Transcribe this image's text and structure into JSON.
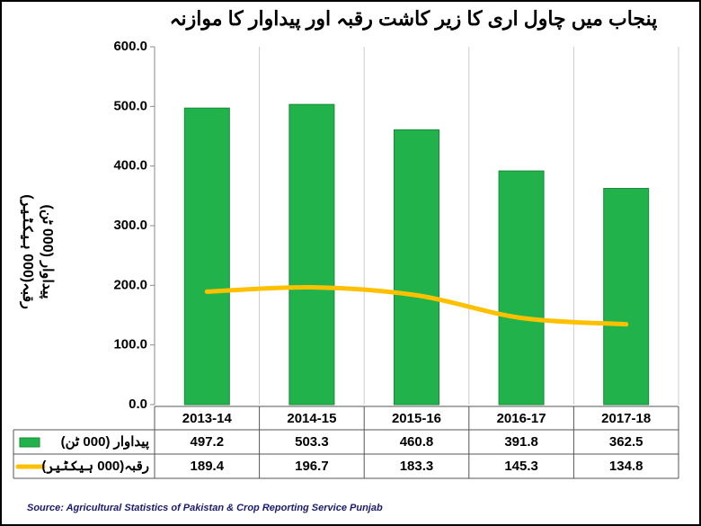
{
  "chart_data": {
    "type": "bar-line",
    "title": "پنجاب میں چاول اری کا زیر کاشت رقبہ اور پیداوار کا موازنہ",
    "y_label": [
      "رقبہ(000 ہیکٹیر)",
      "پیداوار (000 ٹن)"
    ],
    "categories": [
      "2013-14",
      "2014-15",
      "2015-16",
      "2016-17",
      "2017-18"
    ],
    "series": [
      {
        "name": "پیداوار (000 ٹن)",
        "type": "bar",
        "color": "#22b24c",
        "values": [
          497.2,
          503.3,
          460.8,
          391.8,
          362.5
        ]
      },
      {
        "name": "رقبہ(000 ہیکٹیر)",
        "type": "line",
        "color": "#ffc000",
        "values": [
          189.4,
          196.7,
          183.3,
          145.3,
          134.8
        ]
      }
    ],
    "ylim": [
      0,
      600
    ],
    "yticks": [
      {
        "value": 0,
        "label": "0.0"
      },
      {
        "value": 100,
        "label": "100.0"
      },
      {
        "value": 200,
        "label": "200.0"
      },
      {
        "value": 300,
        "label": "300.0"
      },
      {
        "value": 400,
        "label": "400.0"
      },
      {
        "value": 500,
        "label": "500.0"
      },
      {
        "value": 600,
        "label": "600.0"
      }
    ],
    "grid": false,
    "source": "Source: Agricultural Statistics of Pakistan & Crop Reporting Service Punjab"
  }
}
